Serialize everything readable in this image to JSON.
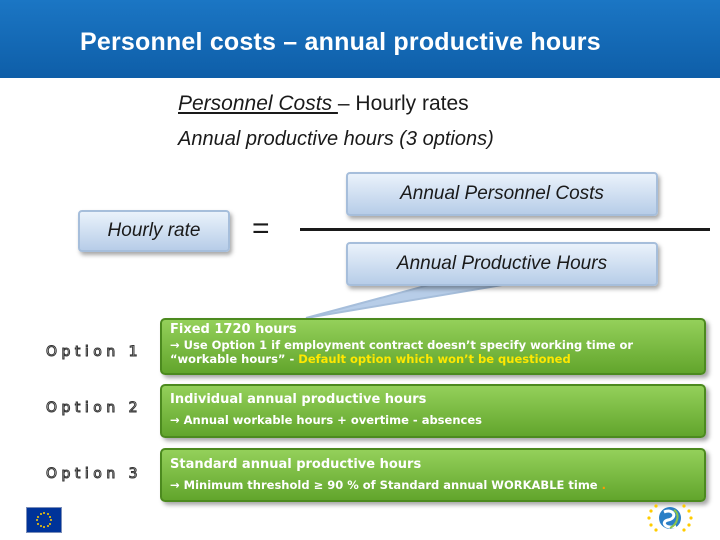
{
  "slide": {
    "title": "Personnel costs – annual productive hours",
    "subtitle_italic": "Personnel Costs ",
    "subtitle_rest": "– Hourly rates",
    "subline": "Annual productive hours (3 options)"
  },
  "formula": {
    "left": "Hourly rate",
    "equals": "=",
    "numerator": "Annual Personnel Costs",
    "denominator": "Annual Productive Hours"
  },
  "options": [
    {
      "label": "Option 1",
      "heading": "Fixed 1720 hours",
      "line1": "→ Use Option 1 if employment contract doesn’t specify working time or",
      "line2_prefix": "“workable hours” - ",
      "line2_highlight": "Default option which won’t be questioned"
    },
    {
      "label": "Option 2",
      "heading": "Individual annual productive hours",
      "line1": "→ Annual workable hours + overtime - absences"
    },
    {
      "label": "Option 3",
      "heading": "Standard annual productive hours",
      "line1": "→ Minimum threshold ≥ 90 % of Standard annual WORKABLE time",
      "line1_suffix": " ."
    }
  ],
  "colors": {
    "title_bar": "#0e5ea8",
    "option_green": "#7cbf45",
    "highlight_yellow": "#ffe800",
    "formula_box": "#b7cde8"
  },
  "icons": [
    "eu-flag-icon",
    "program-logo-icon"
  ]
}
